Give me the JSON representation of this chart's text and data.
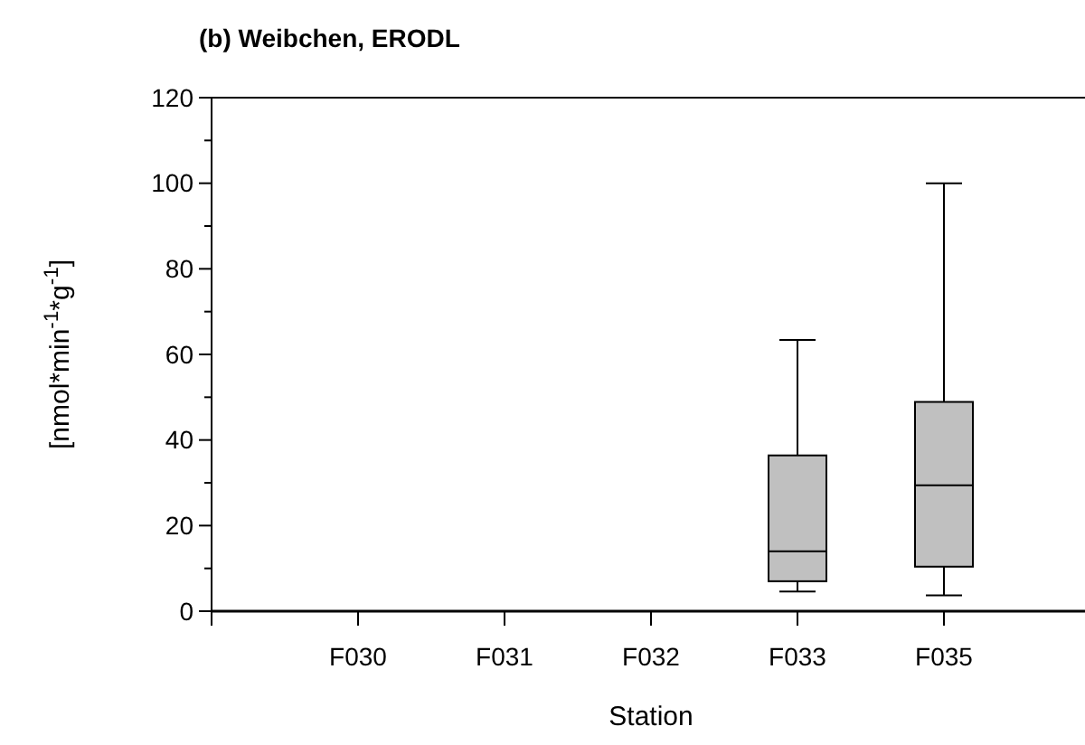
{
  "chart_data": {
    "type": "box",
    "title": "(b)  Weibchen, ERODL",
    "xlabel": "Station",
    "ylabel": "[nmol*min$^{-1}$*g$^{-1}$]",
    "categories": [
      "F030",
      "F031",
      "F032",
      "F033",
      "F035"
    ],
    "boxes": [
      null,
      null,
      null,
      {
        "low": 4.6,
        "q1": 7,
        "median": 14,
        "q3": 36.4,
        "high": 63.4
      },
      {
        "low": 3.7,
        "q1": 10.4,
        "median": 29.4,
        "q3": 48.9,
        "high": 100
      }
    ],
    "color": "#c0c0c0",
    "ylim": [
      0,
      120
    ],
    "yticks": [
      0,
      {
        "value": 10,
        "label": null
      },
      20,
      {
        "value": 30,
        "label": null
      },
      40,
      {
        "value": 50,
        "label": null
      },
      60,
      {
        "value": 70,
        "label": null
      },
      80,
      {
        "value": 90,
        "label": null
      },
      100,
      {
        "value": 110,
        "label": null
      },
      120
    ],
    "grid": false
  }
}
